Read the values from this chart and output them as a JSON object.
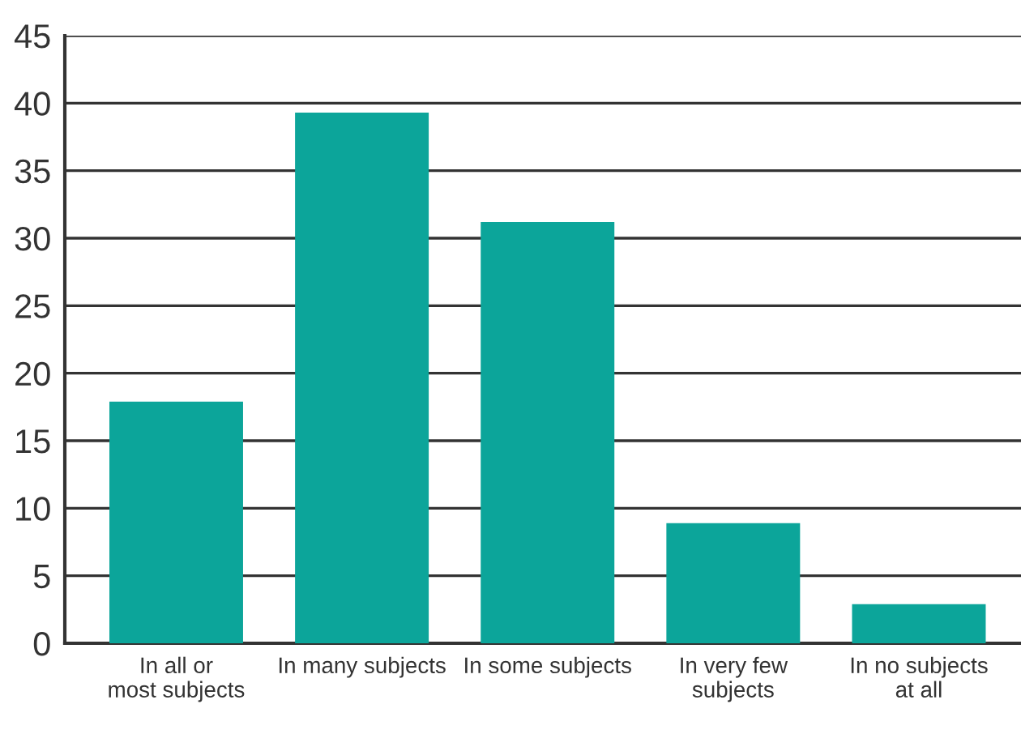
{
  "chart_data": {
    "type": "bar",
    "categories": [
      "In all or\nmost subjects",
      "In many subjects",
      "In some subjects",
      "In very few\nsubjects",
      "In no subjects\nat all"
    ],
    "values": [
      17.9,
      39.3,
      31.2,
      8.9,
      2.9
    ],
    "color": "#0ca59a",
    "ylim": [
      0,
      45
    ],
    "yticks": [
      0,
      5,
      10,
      15,
      20,
      25,
      30,
      35,
      40,
      45
    ],
    "grid": "y"
  }
}
